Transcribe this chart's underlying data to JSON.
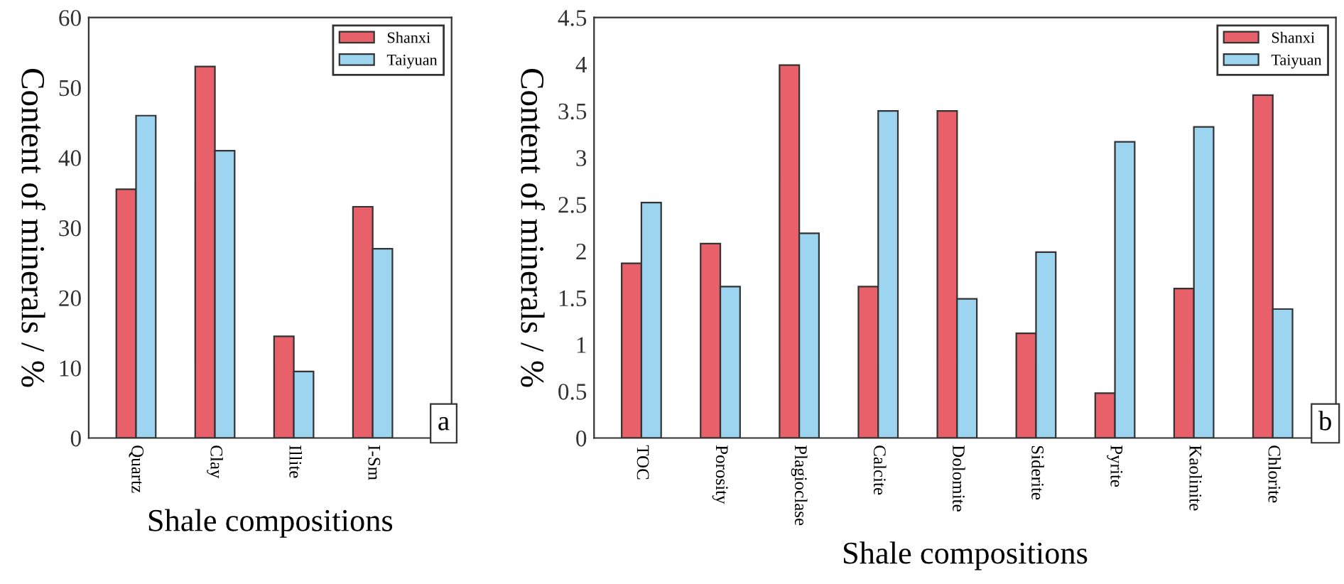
{
  "chart_data": [
    {
      "type": "bar",
      "categories": [
        "Quartz",
        "Clay",
        "Illite",
        "I-Sm"
      ],
      "xlabel": "Shale compositions",
      "ylabel": "Content of minerals / %",
      "ylim": [
        0,
        60
      ],
      "yticks": [
        0,
        10,
        20,
        30,
        40,
        50,
        60
      ],
      "legend": "top right",
      "grid": false,
      "annotations": [
        "a"
      ],
      "series": [
        {
          "name": "Shanxi",
          "color": "#e8606a",
          "values": [
            35.5,
            53,
            14.5,
            33
          ]
        },
        {
          "name": "Taiyuan",
          "color": "#9dd5f0",
          "values": [
            46,
            41,
            9.5,
            27
          ]
        }
      ]
    },
    {
      "type": "bar",
      "categories": [
        "TOC",
        "Porosity",
        "Plagioclase",
        "Calcite",
        "Dolomite",
        "Siderite",
        "Pyrite",
        "Kaolinite",
        "Chlorite"
      ],
      "xlabel": "Shale compositions",
      "ylabel": "Content of minerals / %",
      "ylim": [
        0,
        4.5
      ],
      "yticks": [
        0,
        {
          "value": 0.5,
          "label": "0.5"
        },
        1,
        {
          "value": 1.5,
          "label": "1.5"
        },
        2,
        {
          "value": 2.5,
          "label": "2.5"
        },
        3,
        {
          "value": 3.5,
          "label": "3.5"
        },
        4,
        {
          "value": 4.5,
          "label": "4.5"
        }
      ],
      "legend": "top right",
      "grid": false,
      "annotations": [
        "b"
      ],
      "series": [
        {
          "name": "Shanxi",
          "color": "#e8606a",
          "values": [
            1.87,
            2.08,
            3.99,
            1.62,
            3.5,
            1.12,
            0.48,
            1.6,
            3.67
          ]
        },
        {
          "name": "Taiyuan",
          "color": "#9dd5f0",
          "values": [
            2.52,
            1.62,
            2.19,
            3.5,
            1.49,
            1.99,
            3.17,
            3.33,
            1.38
          ]
        }
      ]
    }
  ]
}
